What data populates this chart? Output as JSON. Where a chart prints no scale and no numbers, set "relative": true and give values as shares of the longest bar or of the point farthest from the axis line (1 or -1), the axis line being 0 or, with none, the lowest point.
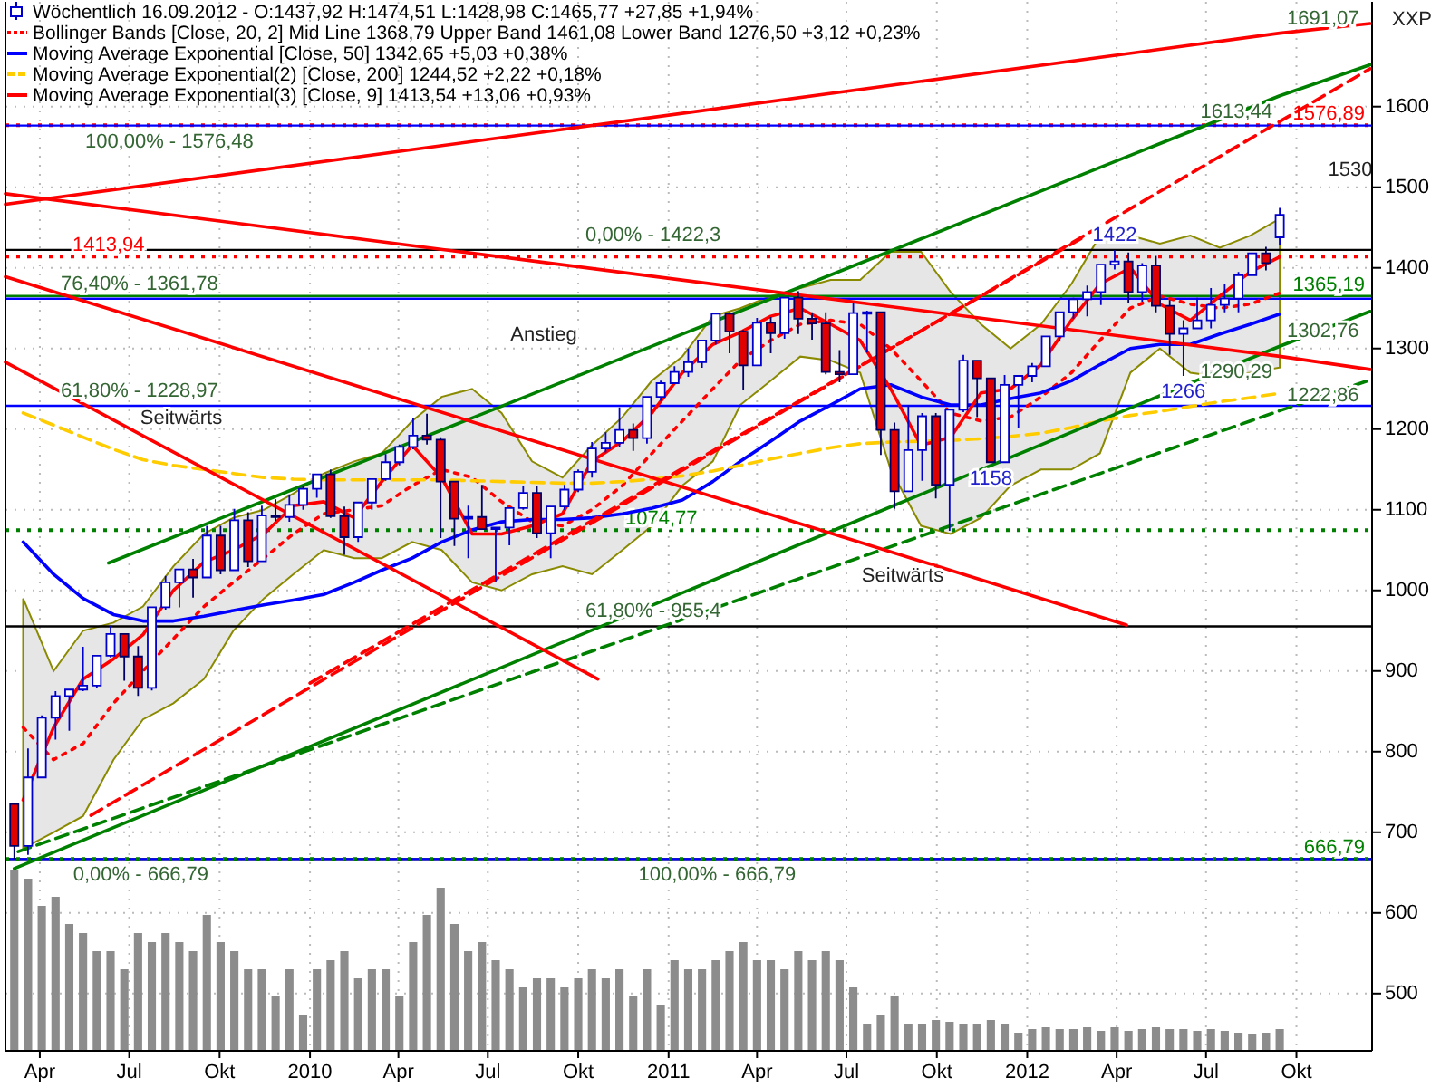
{
  "chart_data": [
    {
      "type": "candlestick",
      "title": "Wöchentlich 16.09.2012 - O:1437,92 H:1474,51 L:1428,98 C:1465,77 +27,85 +1,94%",
      "x": [
        "2009-03-06",
        "2009-03-20",
        "2009-04-03",
        "2009-04-17",
        "2009-05-01",
        "2009-05-15",
        "2009-05-29",
        "2009-06-12",
        "2009-06-26",
        "2009-07-10",
        "2009-07-24",
        "2009-08-07",
        "2009-08-21",
        "2009-09-04",
        "2009-09-18",
        "2009-10-02",
        "2009-10-16",
        "2009-10-30",
        "2009-11-13",
        "2009-11-27",
        "2009-12-11",
        "2009-12-25",
        "2010-01-08",
        "2010-01-22",
        "2010-02-05",
        "2010-02-19",
        "2010-03-05",
        "2010-03-19",
        "2010-04-02",
        "2010-04-16",
        "2010-04-30",
        "2010-05-14",
        "2010-05-28",
        "2010-06-11",
        "2010-06-25",
        "2010-07-09",
        "2010-07-23",
        "2010-08-06",
        "2010-08-20",
        "2010-09-03",
        "2010-09-17",
        "2010-10-01",
        "2010-10-15",
        "2010-10-29",
        "2010-11-12",
        "2010-11-26",
        "2010-12-10",
        "2010-12-24",
        "2011-01-07",
        "2011-01-21",
        "2011-02-04",
        "2011-02-18",
        "2011-03-04",
        "2011-03-18",
        "2011-04-01",
        "2011-04-15",
        "2011-04-29",
        "2011-05-13",
        "2011-05-27",
        "2011-06-10",
        "2011-06-24",
        "2011-07-08",
        "2011-07-22",
        "2011-08-05",
        "2011-08-19",
        "2011-09-02",
        "2011-09-16",
        "2011-09-30",
        "2011-10-14",
        "2011-10-28",
        "2011-11-11",
        "2011-11-25",
        "2011-12-09",
        "2011-12-23",
        "2012-01-06",
        "2012-01-20",
        "2012-02-03",
        "2012-02-17",
        "2012-03-02",
        "2012-03-16",
        "2012-03-30",
        "2012-04-13",
        "2012-04-27",
        "2012-05-11",
        "2012-05-25",
        "2012-06-08",
        "2012-06-22",
        "2012-07-06",
        "2012-07-20",
        "2012-08-03",
        "2012-08-17",
        "2012-08-31",
        "2012-09-14"
      ],
      "ohlc": [
        [
          735,
          735,
          666.79,
          683
        ],
        [
          683,
          804,
          672,
          768
        ],
        [
          768,
          845,
          768,
          842
        ],
        [
          842,
          875,
          815,
          869
        ],
        [
          869,
          878,
          826,
          877
        ],
        [
          877,
          930,
          875,
          882
        ],
        [
          882,
          920,
          879,
          919
        ],
        [
          919,
          956,
          917,
          946
        ],
        [
          946,
          946,
          888,
          918
        ],
        [
          918,
          931,
          869,
          879
        ],
        [
          879,
          979,
          876,
          979
        ],
        [
          979,
          1018,
          976,
          1010
        ],
        [
          1010,
          1027,
          979,
          1026
        ],
        [
          1026,
          1039,
          991,
          1016
        ],
        [
          1016,
          1080,
          1016,
          1068
        ],
        [
          1068,
          1080,
          1020,
          1025
        ],
        [
          1025,
          1101,
          1025,
          1087
        ],
        [
          1087,
          1097,
          1029,
          1036
        ],
        [
          1036,
          1105,
          1036,
          1093
        ],
        [
          1093,
          1113,
          1086,
          1091
        ],
        [
          1091,
          1119,
          1085,
          1106
        ],
        [
          1106,
          1130,
          1100,
          1126
        ],
        [
          1126,
          1145,
          1115,
          1144
        ],
        [
          1144,
          1150,
          1090,
          1092
        ],
        [
          1092,
          1104,
          1044,
          1066
        ],
        [
          1066,
          1110,
          1060,
          1109
        ],
        [
          1109,
          1139,
          1100,
          1138
        ],
        [
          1138,
          1169,
          1136,
          1159
        ],
        [
          1159,
          1181,
          1155,
          1178
        ],
        [
          1178,
          1214,
          1175,
          1192
        ],
        [
          1192,
          1219,
          1181,
          1187
        ],
        [
          1187,
          1190,
          1065,
          1135
        ],
        [
          1135,
          1135,
          1055,
          1089
        ],
        [
          1089,
          1105,
          1040,
          1091
        ],
        [
          1091,
          1131,
          1075,
          1076
        ],
        [
          1076,
          1078,
          1010,
          1078
        ],
        [
          1078,
          1103,
          1056,
          1102
        ],
        [
          1102,
          1130,
          1100,
          1121
        ],
        [
          1121,
          1129,
          1065,
          1071
        ],
        [
          1071,
          1105,
          1040,
          1104
        ],
        [
          1104,
          1131,
          1100,
          1125
        ],
        [
          1125,
          1150,
          1122,
          1147
        ],
        [
          1147,
          1184,
          1140,
          1176
        ],
        [
          1176,
          1196,
          1171,
          1183
        ],
        [
          1183,
          1227,
          1178,
          1199
        ],
        [
          1199,
          1207,
          1173,
          1189
        ],
        [
          1189,
          1241,
          1182,
          1240
        ],
        [
          1240,
          1260,
          1235,
          1257
        ],
        [
          1257,
          1278,
          1257,
          1271
        ],
        [
          1271,
          1300,
          1265,
          1283
        ],
        [
          1283,
          1311,
          1276,
          1310
        ],
        [
          1310,
          1344,
          1305,
          1343
        ],
        [
          1343,
          1345,
          1294,
          1321
        ],
        [
          1321,
          1323,
          1249,
          1279
        ],
        [
          1279,
          1338,
          1279,
          1332
        ],
        [
          1332,
          1339,
          1294,
          1319
        ],
        [
          1319,
          1364,
          1312,
          1363
        ],
        [
          1363,
          1371,
          1318,
          1337
        ],
        [
          1337,
          1345,
          1311,
          1331
        ],
        [
          1331,
          1345,
          1268,
          1271
        ],
        [
          1271,
          1298,
          1258,
          1268
        ],
        [
          1268,
          1356,
          1268,
          1344
        ],
        [
          1344,
          1347,
          1295,
          1345
        ],
        [
          1345,
          1346,
          1168,
          1199
        ],
        [
          1199,
          1208,
          1101,
          1123
        ],
        [
          1123,
          1230,
          1123,
          1174
        ],
        [
          1174,
          1220,
          1136,
          1216
        ],
        [
          1216,
          1220,
          1114,
          1131
        ],
        [
          1131,
          1224,
          1074,
          1224
        ],
        [
          1224,
          1292,
          1221,
          1285
        ],
        [
          1285,
          1285,
          1215,
          1263
        ],
        [
          1263,
          1264,
          1158,
          1159
        ],
        [
          1159,
          1267,
          1159,
          1255
        ],
        [
          1255,
          1266,
          1202,
          1266
        ],
        [
          1266,
          1282,
          1258,
          1278
        ],
        [
          1278,
          1315,
          1277,
          1315
        ],
        [
          1315,
          1345,
          1309,
          1345
        ],
        [
          1345,
          1363,
          1337,
          1361
        ],
        [
          1361,
          1378,
          1340,
          1370
        ],
        [
          1370,
          1405,
          1354,
          1404
        ],
        [
          1404,
          1422,
          1398,
          1408
        ],
        [
          1408,
          1419,
          1357,
          1370
        ],
        [
          1370,
          1406,
          1358,
          1403
        ],
        [
          1403,
          1415,
          1345,
          1353
        ],
        [
          1353,
          1360,
          1292,
          1318
        ],
        [
          1318,
          1335,
          1266,
          1325
        ],
        [
          1325,
          1363,
          1324,
          1335
        ],
        [
          1335,
          1375,
          1325,
          1354
        ],
        [
          1354,
          1380,
          1345,
          1362
        ],
        [
          1362,
          1395,
          1345,
          1391
        ],
        [
          1391,
          1419,
          1391,
          1418
        ],
        [
          1418,
          1426,
          1397,
          1406
        ],
        [
          1437.92,
          1474.51,
          1428.98,
          1465.77
        ]
      ],
      "series": [
        {
          "type": "line",
          "name": "Bollinger Bands [Close, 20, 2] Mid Line 1368,79 Upper Band 1461,08 Lower Band 1276,50 +3,12 +0,23%",
          "color": "#ff0000",
          "line_style": "dotted",
          "x": [
            "2009-03-15",
            "2009-04-15",
            "2009-05-15",
            "2009-06-15",
            "2009-07-15",
            "2009-08-15",
            "2009-09-15",
            "2009-10-15",
            "2009-11-15",
            "2009-12-15",
            "2010-01-15",
            "2010-02-15",
            "2010-03-15",
            "2010-04-15",
            "2010-05-15",
            "2010-06-15",
            "2010-07-15",
            "2010-08-15",
            "2010-09-15",
            "2010-10-15",
            "2010-11-15",
            "2010-12-15",
            "2011-01-15",
            "2011-02-15",
            "2011-03-15",
            "2011-04-15",
            "2011-05-15",
            "2011-06-15",
            "2011-07-15",
            "2011-08-15",
            "2011-09-15",
            "2011-10-15",
            "2011-11-15",
            "2011-12-15",
            "2012-01-15",
            "2012-02-15",
            "2012-03-15",
            "2012-04-15",
            "2012-05-15",
            "2012-06-15",
            "2012-07-15",
            "2012-08-15",
            "2012-09-14"
          ],
          "values": [
            830,
            790,
            810,
            860,
            900,
            940,
            980,
            1010,
            1040,
            1070,
            1095,
            1100,
            1105,
            1130,
            1150,
            1140,
            1110,
            1085,
            1080,
            1100,
            1130,
            1170,
            1210,
            1250,
            1285,
            1310,
            1330,
            1335,
            1330,
            1300,
            1260,
            1220,
            1210,
            1215,
            1240,
            1270,
            1310,
            1350,
            1365,
            1355,
            1350,
            1355,
            1368.79
          ],
          "lower": [
            680,
            700,
            720,
            790,
            840,
            860,
            890,
            950,
            990,
            1020,
            1050,
            1040,
            1040,
            1060,
            1050,
            1010,
            1000,
            1020,
            1030,
            1020,
            1050,
            1080,
            1130,
            1160,
            1230,
            1260,
            1290,
            1285,
            1270,
            1150,
            1080,
            1070,
            1090,
            1130,
            1150,
            1150,
            1170,
            1270,
            1300,
            1270,
            1265,
            1270,
            1276.5
          ],
          "upper": [
            990,
            900,
            950,
            960,
            980,
            1030,
            1070,
            1090,
            1100,
            1120,
            1145,
            1160,
            1170,
            1210,
            1240,
            1250,
            1220,
            1160,
            1140,
            1180,
            1215,
            1260,
            1290,
            1340,
            1350,
            1365,
            1375,
            1385,
            1385,
            1420,
            1420,
            1370,
            1330,
            1300,
            1330,
            1380,
            1440,
            1440,
            1430,
            1440,
            1425,
            1440,
            1461.08
          ]
        },
        {
          "type": "line",
          "name": "Moving Average Exponential [Close, 50] 1342,65 +5,03 +0,38%",
          "color": "#0000ff",
          "x": [
            "2009-03-15",
            "2009-04-15",
            "2009-05-15",
            "2009-06-15",
            "2009-07-15",
            "2009-08-15",
            "2009-09-15",
            "2009-10-15",
            "2009-11-15",
            "2009-12-15",
            "2010-01-15",
            "2010-02-15",
            "2010-03-15",
            "2010-04-15",
            "2010-05-15",
            "2010-06-15",
            "2010-07-15",
            "2010-08-15",
            "2010-09-15",
            "2010-10-15",
            "2010-11-15",
            "2010-12-15",
            "2011-01-15",
            "2011-02-15",
            "2011-03-15",
            "2011-04-15",
            "2011-05-15",
            "2011-06-15",
            "2011-07-15",
            "2011-08-15",
            "2011-09-15",
            "2011-10-15",
            "2011-11-15",
            "2011-12-15",
            "2012-01-15",
            "2012-02-15",
            "2012-03-15",
            "2012-04-15",
            "2012-05-15",
            "2012-06-15",
            "2012-07-15",
            "2012-08-15",
            "2012-09-14"
          ],
          "values": [
            1060,
            1020,
            990,
            970,
            962,
            962,
            968,
            975,
            982,
            988,
            995,
            1010,
            1025,
            1040,
            1060,
            1075,
            1085,
            1088,
            1088,
            1090,
            1095,
            1102,
            1112,
            1135,
            1160,
            1185,
            1210,
            1230,
            1250,
            1255,
            1240,
            1230,
            1230,
            1238,
            1245,
            1260,
            1280,
            1300,
            1305,
            1305,
            1318,
            1330,
            1342.65
          ]
        },
        {
          "type": "line",
          "name": "Moving Average Exponential(2) [Close, 200] 1244,52 +2,22 +0,18%",
          "color": "#ffcc00",
          "line_style": "dashed",
          "x": [
            "2009-03-15",
            "2009-04-15",
            "2009-05-15",
            "2009-06-15",
            "2009-07-15",
            "2009-08-15",
            "2009-09-15",
            "2009-10-15",
            "2009-11-15",
            "2009-12-15",
            "2010-01-15",
            "2010-02-15",
            "2010-03-15",
            "2010-04-15",
            "2010-05-15",
            "2010-06-15",
            "2010-07-15",
            "2010-08-15",
            "2010-09-15",
            "2010-10-15",
            "2010-11-15",
            "2010-12-15",
            "2011-01-15",
            "2011-02-15",
            "2011-03-15",
            "2011-04-15",
            "2011-05-15",
            "2011-06-15",
            "2011-07-15",
            "2011-08-15",
            "2011-09-15",
            "2011-10-15",
            "2011-11-15",
            "2011-12-15",
            "2012-01-15",
            "2012-02-15",
            "2012-03-15",
            "2012-04-15",
            "2012-05-15",
            "2012-06-15",
            "2012-07-15",
            "2012-08-15",
            "2012-09-14"
          ],
          "values": [
            1220,
            1205,
            1190,
            1175,
            1162,
            1155,
            1150,
            1145,
            1140,
            1138,
            1137,
            1137,
            1137,
            1137,
            1137,
            1136,
            1135,
            1134,
            1133,
            1133,
            1135,
            1138,
            1142,
            1148,
            1155,
            1163,
            1170,
            1177,
            1182,
            1184,
            1185,
            1186,
            1188,
            1191,
            1195,
            1202,
            1210,
            1217,
            1222,
            1228,
            1234,
            1239,
            1244.52
          ]
        },
        {
          "type": "line",
          "name": "Moving Average Exponential(3) [Close, 9] 1413,54 +13,06 +0,93%",
          "color": "#ff0000",
          "x": [
            "2009-03-15",
            "2009-04-15",
            "2009-05-15",
            "2009-06-15",
            "2009-07-15",
            "2009-08-15",
            "2009-09-15",
            "2009-10-15",
            "2009-11-15",
            "2009-12-15",
            "2010-01-15",
            "2010-02-15",
            "2010-03-15",
            "2010-04-15",
            "2010-05-15",
            "2010-06-15",
            "2010-07-15",
            "2010-08-15",
            "2010-09-15",
            "2010-10-15",
            "2010-11-15",
            "2010-12-15",
            "2011-01-15",
            "2011-02-15",
            "2011-03-15",
            "2011-04-15",
            "2011-05-15",
            "2011-06-15",
            "2011-07-15",
            "2011-08-15",
            "2011-09-15",
            "2011-10-15",
            "2011-11-15",
            "2011-12-15",
            "2012-01-15",
            "2012-02-15",
            "2012-03-15",
            "2012-04-15",
            "2012-05-15",
            "2012-06-15",
            "2012-07-15",
            "2012-08-15",
            "2012-09-14"
          ],
          "values": [
            740,
            830,
            890,
            915,
            945,
            1000,
            1035,
            1050,
            1070,
            1105,
            1110,
            1090,
            1135,
            1180,
            1140,
            1070,
            1070,
            1080,
            1095,
            1160,
            1185,
            1220,
            1270,
            1305,
            1320,
            1340,
            1350,
            1330,
            1310,
            1250,
            1180,
            1190,
            1245,
            1250,
            1280,
            1335,
            1380,
            1400,
            1355,
            1335,
            1365,
            1395,
            1413.54
          ]
        },
        {
          "type": "line",
          "color": "#008000",
          "x": [
            "2009-06-10",
            "2012-09-14",
            "2012-12-15"
          ],
          "values": [
            1034,
            1613.44,
            1652
          ]
        },
        {
          "type": "line",
          "color": "#008000",
          "x": [
            "2009-03-06",
            "2012-09-14",
            "2012-12-15"
          ],
          "values": [
            655,
            1302.76,
            1346
          ]
        },
        {
          "type": "line",
          "color": "#008000",
          "line_style": "dashed",
          "x": [
            "2009-03-10",
            "2012-09-14",
            "2012-12-15"
          ],
          "values": [
            676,
            1222.86,
            1261
          ]
        },
        {
          "type": "line",
          "color": "#ff0000",
          "x": [
            "2009-02-25",
            "2012-09-14",
            "2012-12-15"
          ],
          "values": [
            1492,
            1290.29,
            1274
          ]
        },
        {
          "type": "line",
          "color": "#ff0000",
          "x": [
            "2009-02-25",
            "2012-09-14",
            "2012-12-15"
          ],
          "values": [
            1479,
            1691.07,
            1703
          ]
        },
        {
          "type": "line",
          "color": "#ff0000",
          "x": [
            "2009-02-25",
            "2012-04-11"
          ],
          "values": [
            1389,
            957
          ]
        },
        {
          "type": "line",
          "color": "#ff0000",
          "x": [
            "2009-02-25",
            "2010-10-21"
          ],
          "values": [
            1283,
            890
          ]
        },
        {
          "type": "line",
          "color": "#ff0000",
          "line_style": "dashed",
          "x": [
            "2009-05-23",
            "2012-12-15"
          ],
          "values": [
            721,
            1647
          ]
        },
        {
          "type": "line",
          "color": "#ff0000",
          "line_style": "dashed",
          "x": [
            "2010-01-01",
            "2012-03-01"
          ],
          "values": [
            885,
            1440
          ]
        }
      ],
      "ref_lines": [
        {
          "axis": "y",
          "value": 1576.89,
          "label": "1576,89",
          "color": "#ff0000",
          "line_style": "dotted"
        },
        {
          "axis": "y",
          "value": 1576.48,
          "color": "#0000ff"
        },
        {
          "axis": "y",
          "value": 1422.3,
          "color": "#000000"
        },
        {
          "axis": "y",
          "value": 1413.94,
          "label": "1413,94",
          "color": "#ff0000",
          "line_style": "dotted"
        },
        {
          "axis": "y",
          "value": 1365.19,
          "label": "1365,19",
          "color": "#008000"
        },
        {
          "axis": "y",
          "value": 1361.78,
          "color": "#0000ff"
        },
        {
          "axis": "y",
          "value": 666.79,
          "color": "#000000"
        },
        {
          "axis": "y",
          "value": 666.79,
          "color": "#0000ff"
        },
        {
          "axis": "y",
          "value": 666.79,
          "label": "666,79",
          "color": "#008000",
          "line_style": "dotted"
        },
        {
          "axis": "y",
          "value": 1228.97,
          "color": "#0000ff"
        },
        {
          "axis": "y",
          "value": 955.4,
          "color": "#000000"
        },
        {
          "axis": "y",
          "value": 1074.77,
          "label": "1074,77",
          "color": "#008000",
          "line_style": "dotted"
        }
      ],
      "annotations": [
        "XXP",
        "1530",
        "Anstieg",
        "Seitwärts",
        "Seitwärts",
        {
          "text": "1691,07",
          "x": "2012-09-14",
          "y": 1691.07
        },
        {
          "text": "1613,44",
          "x": "2012-09-14",
          "y": 1613.44
        },
        {
          "text": "1302,76",
          "x": "2012-09-14",
          "y": 1302.76
        },
        {
          "text": "1290,29",
          "x": "2012-09-14",
          "y": 1290.29
        },
        {
          "text": "1222,86",
          "x": "2012-09-14",
          "y": 1222.86
        },
        {
          "text": "1422",
          "x": "2012-03-30",
          "y": 1422
        },
        {
          "text": "1266",
          "x": "2012-06-08",
          "y": 1266
        },
        {
          "text": "1158",
          "x": "2011-11-25",
          "y": 1158
        },
        {
          "text": "0,00% - 1422,3",
          "x": "2010-10-01",
          "y": 1422.3
        },
        {
          "text": "100,00% - 1576,48",
          "x": "2009-11-12",
          "y": 1576.48
        },
        {
          "text": "76,40% - 1361,78",
          "x": "2009-04-15",
          "y": 1361.78
        },
        {
          "text": "100,00% - 666,79",
          "x": "2011-05-18",
          "y": 666.79
        },
        {
          "text": "61,80% - 1228,97",
          "x": "2009-04-15",
          "y": 1228.97
        },
        {
          "text": "0,00% - 666,79",
          "x": "2009-09-27",
          "y": 666.79
        },
        {
          "text": "61,80% - 955,4",
          "x": "2010-10-01",
          "y": 955.4
        }
      ],
      "xlim": [
        "2009-02-25",
        "2012-12-17"
      ],
      "xticks": [
        {
          "value": "2009-04-01",
          "label": "Apr"
        },
        {
          "value": "2009-07-01",
          "label": "Jul"
        },
        {
          "value": "2009-10-01",
          "label": "Okt"
        },
        {
          "value": "2010-01-01",
          "label": "2010"
        },
        {
          "value": "2010-04-01",
          "label": "Apr"
        },
        {
          "value": "2010-07-01",
          "label": "Jul"
        },
        {
          "value": "2010-10-01",
          "label": "Okt"
        },
        {
          "value": "2011-01-01",
          "label": "2011"
        },
        {
          "value": "2011-04-01",
          "label": "Apr"
        },
        {
          "value": "2011-07-01",
          "label": "Jul"
        },
        {
          "value": "2011-10-01",
          "label": "Okt"
        },
        {
          "value": "2012-01-01",
          "label": "2012"
        },
        {
          "value": "2012-04-01",
          "label": "Apr"
        },
        {
          "value": "2012-07-01",
          "label": "Jul"
        },
        {
          "value": "2012-10-01",
          "label": "Okt"
        }
      ],
      "ylim": [
        429,
        1730
      ],
      "yticks": [
        500,
        600,
        700,
        800,
        900,
        1000,
        1100,
        1200,
        1300,
        1400,
        1500,
        1600
      ],
      "grid": true,
      "legend": "top left"
    },
    {
      "type": "bar",
      "relative": true,
      "color": "#8c8c8c",
      "xlim": [
        "2009-02-25",
        "2012-12-17"
      ],
      "x": [
        "2009-03-06",
        "2009-03-20",
        "2009-04-03",
        "2009-04-17",
        "2009-05-01",
        "2009-05-15",
        "2009-05-29",
        "2009-06-12",
        "2009-06-26",
        "2009-07-10",
        "2009-07-24",
        "2009-08-07",
        "2009-08-21",
        "2009-09-04",
        "2009-09-18",
        "2009-10-02",
        "2009-10-16",
        "2009-10-30",
        "2009-11-13",
        "2009-11-27",
        "2009-12-11",
        "2009-12-25",
        "2010-01-08",
        "2010-01-22",
        "2010-02-05",
        "2010-02-19",
        "2010-03-05",
        "2010-03-19",
        "2010-04-02",
        "2010-04-16",
        "2010-04-30",
        "2010-05-14",
        "2010-05-28",
        "2010-06-11",
        "2010-06-25",
        "2010-07-09",
        "2010-07-23",
        "2010-08-06",
        "2010-08-20",
        "2010-09-03",
        "2010-09-17",
        "2010-10-01",
        "2010-10-15",
        "2010-10-29",
        "2010-11-12",
        "2010-11-26",
        "2010-12-10",
        "2010-12-24",
        "2011-01-07",
        "2011-01-21",
        "2011-02-04",
        "2011-02-18",
        "2011-03-04",
        "2011-03-18",
        "2011-04-01",
        "2011-04-15",
        "2011-04-29",
        "2011-05-13",
        "2011-05-27",
        "2011-06-10",
        "2011-06-24",
        "2011-07-08",
        "2011-07-22",
        "2011-08-05",
        "2011-08-19",
        "2011-09-02",
        "2011-09-16",
        "2011-09-30",
        "2011-10-14",
        "2011-10-28",
        "2011-11-11",
        "2011-11-25",
        "2011-12-09",
        "2011-12-23",
        "2012-01-06",
        "2012-01-20",
        "2012-02-03",
        "2012-02-17",
        "2012-03-02",
        "2012-03-16",
        "2012-03-30",
        "2012-04-13",
        "2012-04-27",
        "2012-05-11",
        "2012-05-25",
        "2012-06-08",
        "2012-06-22",
        "2012-07-06",
        "2012-07-20",
        "2012-08-03",
        "2012-08-17",
        "2012-08-31",
        "2012-09-14"
      ],
      "values": [
        1,
        0.95,
        0.8,
        0.85,
        0.7,
        0.65,
        0.55,
        0.55,
        0.45,
        0.65,
        0.6,
        0.65,
        0.6,
        0.55,
        0.75,
        0.6,
        0.55,
        0.45,
        0.45,
        0.3,
        0.45,
        0.2,
        0.45,
        0.5,
        0.55,
        0.4,
        0.45,
        0.45,
        0.3,
        0.6,
        0.75,
        0.9,
        0.7,
        0.55,
        0.6,
        0.5,
        0.45,
        0.35,
        0.4,
        0.4,
        0.35,
        0.4,
        0.45,
        0.4,
        0.45,
        0.3,
        0.45,
        0.25,
        0.5,
        0.45,
        0.45,
        0.5,
        0.55,
        0.6,
        0.5,
        0.5,
        0.45,
        0.55,
        0.5,
        0.55,
        0.5,
        0.35,
        0.15,
        0.2,
        0.3,
        0.15,
        0.15,
        0.17,
        0.16,
        0.15,
        0.15,
        0.17,
        0.15,
        0.1,
        0.12,
        0.13,
        0.12,
        0.12,
        0.13,
        0.11,
        0.13,
        0.11,
        0.12,
        0.13,
        0.12,
        0.12,
        0.11,
        0.12,
        0.11,
        0.1,
        0.09,
        0.1,
        0.12
      ]
    }
  ]
}
